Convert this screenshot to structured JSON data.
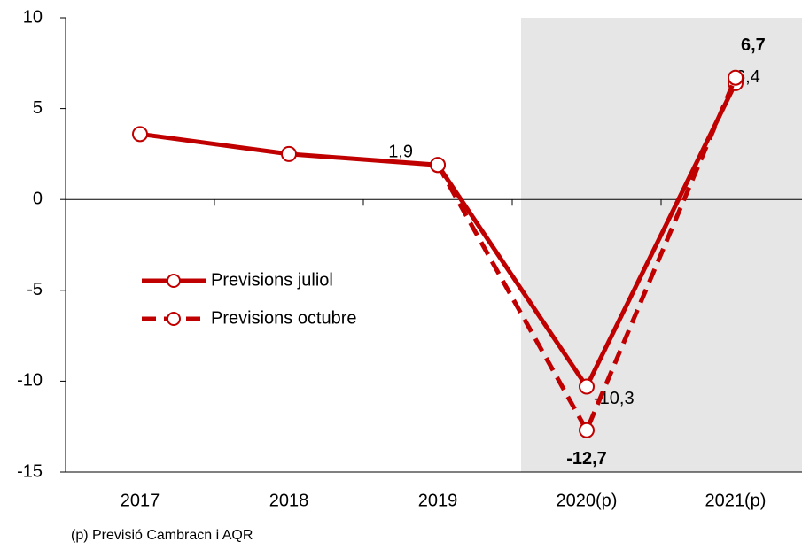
{
  "chart_data": {
    "type": "line",
    "categories": [
      "2017",
      "2018",
      "2019",
      "2020(p)",
      "2021(p)"
    ],
    "series": [
      {
        "name": "Previsions juliol",
        "color": "#c00000",
        "dash": false,
        "values": [
          3.6,
          2.5,
          1.9,
          -10.3,
          6.4
        ],
        "value_labels": [
          null,
          null,
          "1,9",
          "-10,3",
          "6,4"
        ]
      },
      {
        "name": "Previsions octubre",
        "color": "#c00000",
        "dash": true,
        "values": [
          null,
          null,
          1.9,
          -12.7,
          6.7
        ],
        "value_labels": [
          null,
          null,
          null,
          "-12,7",
          "6,7"
        ]
      }
    ],
    "ylim": [
      -15,
      10
    ],
    "yticks": [
      -15,
      -10,
      -5,
      0,
      5,
      10
    ],
    "grid": false,
    "legend": "left",
    "note": "(p) Previsió Cambracn i AQR"
  }
}
